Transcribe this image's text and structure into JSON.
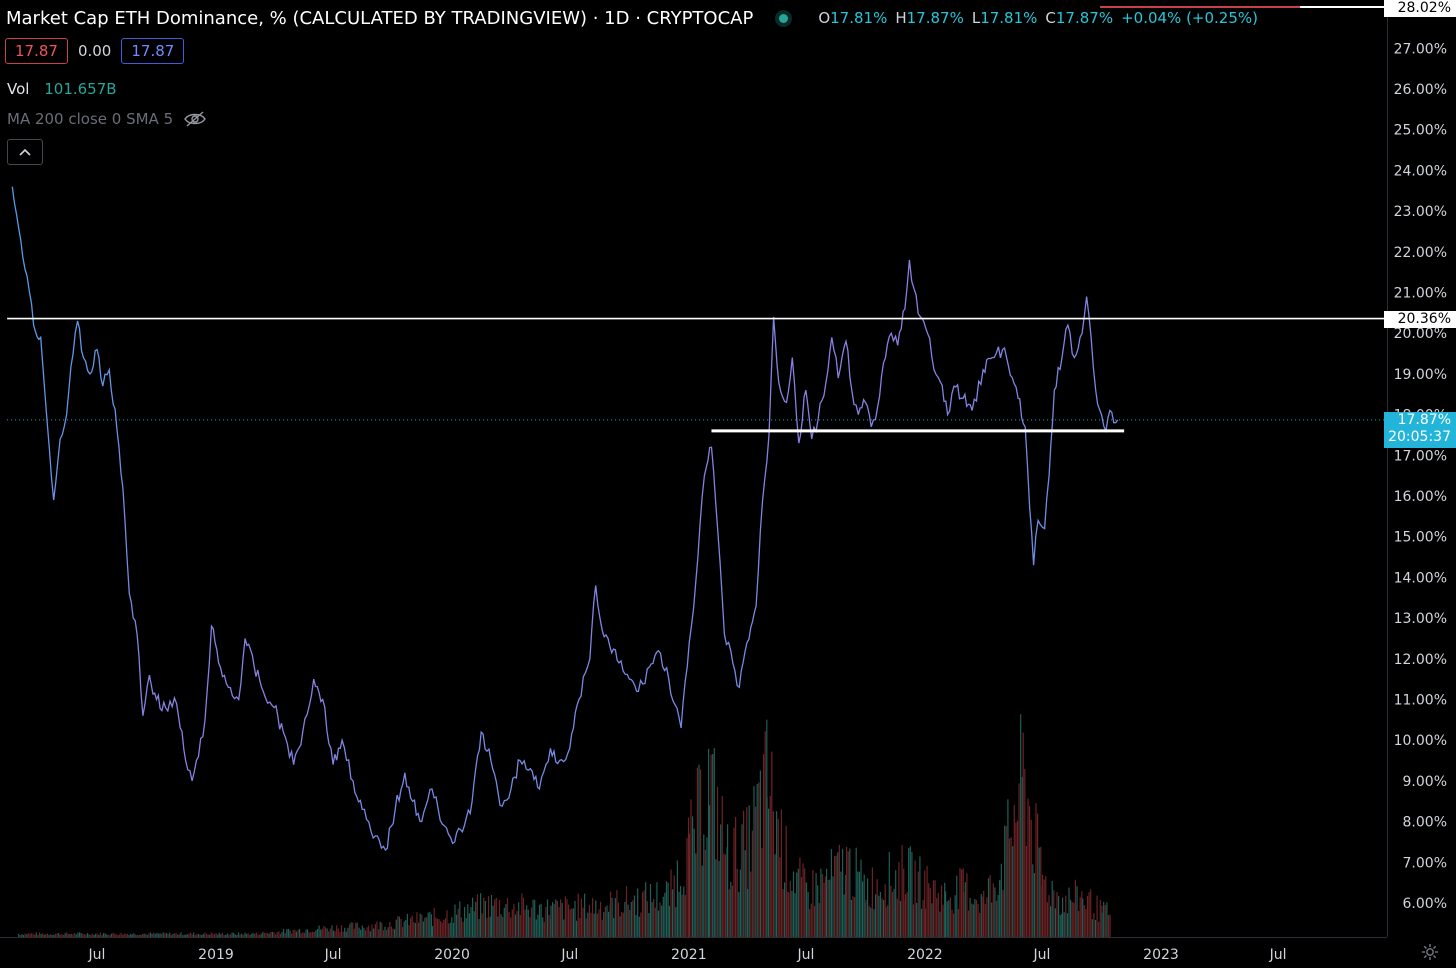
{
  "header": {
    "title": "Market Cap ETH Dominance, % (CALCULATED BY TRADINGVIEW) · 1D · CRYPTOCAP",
    "ohlc": {
      "o_label": "O",
      "o": "17.81%",
      "h_label": "H",
      "h": "17.87%",
      "l_label": "L",
      "l": "17.81%",
      "c_label": "C",
      "c": "17.87%",
      "change": "+0.04% (+0.25%)"
    }
  },
  "trade": {
    "sell": "17.87",
    "spread": "0.00",
    "buy": "17.87"
  },
  "volume": {
    "label": "Vol",
    "value": "101.657B"
  },
  "indicator": {
    "label": "MA 200 close 0 SMA 5",
    "icon": "eye-off-icon"
  },
  "collapse": {
    "icon": "chevron-up-icon"
  },
  "price_tags": {
    "top": "28.02%",
    "level": "20.36%",
    "current": "17.87%",
    "countdown": "20:05:37"
  },
  "colors": {
    "background": "#000000",
    "line_blue": "#4f9fe8",
    "line_purple": "#8a7fe0",
    "volume_up": "#1f5f58",
    "volume_down": "#6b2326",
    "level_line": "#ffffff",
    "current_line": "#22b5d9"
  },
  "chart_data": {
    "type": "line",
    "title": "Market Cap ETH Dominance, % (CALCULATED BY TRADINGVIEW)",
    "interval": "1D",
    "y_ticks": [
      "6.00%",
      "7.00%",
      "8.00%",
      "9.00%",
      "10.00%",
      "11.00%",
      "12.00%",
      "13.00%",
      "14.00%",
      "15.00%",
      "16.00%",
      "17.00%",
      "18.00%",
      "19.00%",
      "20.00%",
      "21.00%",
      "22.00%",
      "23.00%",
      "24.00%",
      "25.00%",
      "26.00%",
      "27.00%"
    ],
    "y_tick_values": [
      6,
      7,
      8,
      9,
      10,
      11,
      12,
      13,
      14,
      15,
      16,
      17,
      18,
      19,
      20,
      21,
      22,
      23,
      24,
      25,
      26,
      27
    ],
    "x_ticks": [
      {
        "label": "Jul",
        "date": "2018-07-01"
      },
      {
        "label": "2019",
        "date": "2019-01-01"
      },
      {
        "label": "Jul",
        "date": "2019-07-01"
      },
      {
        "label": "2020",
        "date": "2020-01-01"
      },
      {
        "label": "Jul",
        "date": "2020-07-01"
      },
      {
        "label": "2021",
        "date": "2021-01-01"
      },
      {
        "label": "Jul",
        "date": "2021-07-01"
      },
      {
        "label": "2022",
        "date": "2022-01-01"
      },
      {
        "label": "Jul",
        "date": "2022-07-01"
      },
      {
        "label": "2023",
        "date": "2023-01-01"
      },
      {
        "label": "Jul",
        "date": "2023-07-01"
      }
    ],
    "series": [
      {
        "values_pct": [
          [
            "2018-02-20",
            23.6
          ],
          [
            "2018-03-05",
            22.3
          ],
          [
            "2018-03-15",
            21.4
          ],
          [
            "2018-03-25",
            20.2
          ],
          [
            "2018-04-05",
            19.9
          ],
          [
            "2018-04-15",
            17.8
          ],
          [
            "2018-04-25",
            15.9
          ],
          [
            "2018-05-05",
            17.4
          ],
          [
            "2018-05-15",
            18.0
          ],
          [
            "2018-05-25",
            19.5
          ],
          [
            "2018-06-01",
            20.3
          ],
          [
            "2018-06-10",
            19.4
          ],
          [
            "2018-06-20",
            19.0
          ],
          [
            "2018-07-01",
            19.6
          ],
          [
            "2018-07-10",
            18.7
          ],
          [
            "2018-07-20",
            19.1
          ],
          [
            "2018-08-01",
            17.6
          ],
          [
            "2018-08-10",
            16.2
          ],
          [
            "2018-08-20",
            13.6
          ],
          [
            "2018-09-01",
            12.6
          ],
          [
            "2018-09-10",
            10.6
          ],
          [
            "2018-09-20",
            11.6
          ],
          [
            "2018-10-01",
            11.0
          ],
          [
            "2018-10-15",
            10.8
          ],
          [
            "2018-11-01",
            10.9
          ],
          [
            "2018-11-15",
            9.5
          ],
          [
            "2018-11-25",
            9.0
          ],
          [
            "2018-12-05",
            9.6
          ],
          [
            "2018-12-15",
            10.5
          ],
          [
            "2018-12-25",
            12.8
          ],
          [
            "2019-01-05",
            11.9
          ],
          [
            "2019-01-20",
            11.3
          ],
          [
            "2019-02-05",
            11.0
          ],
          [
            "2019-02-15",
            12.5
          ],
          [
            "2019-03-01",
            11.8
          ],
          [
            "2019-03-15",
            11.2
          ],
          [
            "2019-04-01",
            10.8
          ],
          [
            "2019-04-15",
            10.2
          ],
          [
            "2019-05-01",
            9.4
          ],
          [
            "2019-05-15",
            10.2
          ],
          [
            "2019-06-01",
            11.5
          ],
          [
            "2019-06-15",
            11.0
          ],
          [
            "2019-07-01",
            9.4
          ],
          [
            "2019-07-15",
            10.0
          ],
          [
            "2019-08-01",
            9.0
          ],
          [
            "2019-08-15",
            8.3
          ],
          [
            "2019-09-01",
            7.6
          ],
          [
            "2019-09-20",
            7.3
          ],
          [
            "2019-10-05",
            8.3
          ],
          [
            "2019-10-20",
            9.2
          ],
          [
            "2019-11-01",
            8.5
          ],
          [
            "2019-11-15",
            8.0
          ],
          [
            "2019-12-01",
            8.8
          ],
          [
            "2019-12-20",
            7.9
          ],
          [
            "2020-01-05",
            7.5
          ],
          [
            "2020-01-20",
            7.9
          ],
          [
            "2020-02-01",
            8.5
          ],
          [
            "2020-02-15",
            10.2
          ],
          [
            "2020-03-01",
            9.5
          ],
          [
            "2020-03-15",
            8.4
          ],
          [
            "2020-04-01",
            8.8
          ],
          [
            "2020-04-15",
            9.5
          ],
          [
            "2020-05-01",
            9.3
          ],
          [
            "2020-05-15",
            8.8
          ],
          [
            "2020-06-01",
            9.8
          ],
          [
            "2020-06-15",
            9.5
          ],
          [
            "2020-07-01",
            9.8
          ],
          [
            "2020-07-15",
            11.0
          ],
          [
            "2020-08-01",
            12.0
          ],
          [
            "2020-08-10",
            13.8
          ],
          [
            "2020-08-20",
            12.7
          ],
          [
            "2020-09-01",
            12.3
          ],
          [
            "2020-09-15",
            11.9
          ],
          [
            "2020-10-01",
            11.5
          ],
          [
            "2020-10-15",
            11.2
          ],
          [
            "2020-11-01",
            11.8
          ],
          [
            "2020-11-15",
            12.2
          ],
          [
            "2020-12-01",
            11.5
          ],
          [
            "2020-12-20",
            10.3
          ],
          [
            "2021-01-05",
            12.8
          ],
          [
            "2021-01-15",
            14.5
          ],
          [
            "2021-01-25",
            16.5
          ],
          [
            "2021-02-05",
            17.2
          ],
          [
            "2021-02-15",
            15.1
          ],
          [
            "2021-02-25",
            12.6
          ],
          [
            "2021-03-10",
            11.9
          ],
          [
            "2021-03-20",
            11.3
          ],
          [
            "2021-04-01",
            12.4
          ],
          [
            "2021-04-15",
            13.3
          ],
          [
            "2021-04-25",
            15.9
          ],
          [
            "2021-05-05",
            17.5
          ],
          [
            "2021-05-12",
            20.4
          ],
          [
            "2021-05-20",
            18.8
          ],
          [
            "2021-06-01",
            18.3
          ],
          [
            "2021-06-10",
            19.4
          ],
          [
            "2021-06-20",
            17.3
          ],
          [
            "2021-07-01",
            18.6
          ],
          [
            "2021-07-10",
            17.4
          ],
          [
            "2021-07-20",
            17.9
          ],
          [
            "2021-08-01",
            18.8
          ],
          [
            "2021-08-10",
            19.9
          ],
          [
            "2021-08-20",
            18.9
          ],
          [
            "2021-09-01",
            19.8
          ],
          [
            "2021-09-10",
            18.6
          ],
          [
            "2021-09-20",
            18.0
          ],
          [
            "2021-10-01",
            18.3
          ],
          [
            "2021-10-10",
            17.7
          ],
          [
            "2021-10-20",
            18.2
          ],
          [
            "2021-11-01",
            19.4
          ],
          [
            "2021-11-10",
            20.0
          ],
          [
            "2021-11-20",
            19.7
          ],
          [
            "2021-12-01",
            20.6
          ],
          [
            "2021-12-08",
            21.8
          ],
          [
            "2021-12-15",
            21.1
          ],
          [
            "2021-12-25",
            20.4
          ],
          [
            "2022-01-05",
            20.0
          ],
          [
            "2022-01-15",
            19.1
          ],
          [
            "2022-01-25",
            18.8
          ],
          [
            "2022-02-05",
            18.0
          ],
          [
            "2022-02-15",
            18.7
          ],
          [
            "2022-03-01",
            18.4
          ],
          [
            "2022-03-15",
            18.1
          ],
          [
            "2022-04-01",
            19.1
          ],
          [
            "2022-04-15",
            19.4
          ],
          [
            "2022-05-01",
            19.6
          ],
          [
            "2022-05-10",
            19.2
          ],
          [
            "2022-05-25",
            18.4
          ],
          [
            "2022-06-05",
            17.7
          ],
          [
            "2022-06-12",
            15.7
          ],
          [
            "2022-06-18",
            14.3
          ],
          [
            "2022-06-25",
            15.4
          ],
          [
            "2022-07-05",
            15.2
          ],
          [
            "2022-07-12",
            16.5
          ],
          [
            "2022-07-20",
            18.6
          ],
          [
            "2022-08-01",
            19.4
          ],
          [
            "2022-08-10",
            20.2
          ],
          [
            "2022-08-20",
            19.4
          ],
          [
            "2022-09-01",
            20.0
          ],
          [
            "2022-09-08",
            20.9
          ],
          [
            "2022-09-15",
            19.9
          ],
          [
            "2022-09-22",
            18.6
          ],
          [
            "2022-10-01",
            18.0
          ],
          [
            "2022-10-08",
            17.6
          ],
          [
            "2022-10-14",
            18.1
          ],
          [
            "2022-10-20",
            17.8
          ],
          [
            "2022-10-26",
            17.87
          ]
        ]
      }
    ],
    "horizontal_levels": [
      {
        "value": 20.36,
        "from": "2018-02-12",
        "to": "end",
        "color": "#ffffff"
      },
      {
        "value": 17.6,
        "from": "2021-02-05",
        "to": "2022-11-05",
        "color": "#ffffff"
      },
      {
        "value": 17.87,
        "from": "2018-02-12",
        "to": "end",
        "color": "#22b5d9",
        "style": "dotted"
      }
    ],
    "volume_bars_relative": [
      [
        "2018-03",
        0.02
      ],
      [
        "2018-09",
        0.02
      ],
      [
        "2019-03",
        0.02
      ],
      [
        "2019-06",
        0.05
      ],
      [
        "2019-09",
        0.07
      ],
      [
        "2019-12",
        0.12
      ],
      [
        "2020-03",
        0.2
      ],
      [
        "2020-06",
        0.17
      ],
      [
        "2020-09",
        0.2
      ],
      [
        "2020-12",
        0.26
      ],
      [
        "2021-01",
        0.55
      ],
      [
        "2021-02",
        0.95
      ],
      [
        "2021-03",
        0.5
      ],
      [
        "2021-04",
        0.55
      ],
      [
        "2021-05",
        0.95
      ],
      [
        "2021-06",
        0.45
      ],
      [
        "2021-07",
        0.28
      ],
      [
        "2021-08",
        0.35
      ],
      [
        "2021-09",
        0.45
      ],
      [
        "2021-10",
        0.3
      ],
      [
        "2021-11",
        0.35
      ],
      [
        "2021-12",
        0.4
      ],
      [
        "2022-01",
        0.32
      ],
      [
        "2022-02",
        0.25
      ],
      [
        "2022-03",
        0.3
      ],
      [
        "2022-04",
        0.22
      ],
      [
        "2022-05",
        0.45
      ],
      [
        "2022-06",
        1.0
      ],
      [
        "2022-07",
        0.35
      ],
      [
        "2022-08",
        0.22
      ],
      [
        "2022-09",
        0.25
      ],
      [
        "2022-10",
        0.15
      ]
    ]
  }
}
